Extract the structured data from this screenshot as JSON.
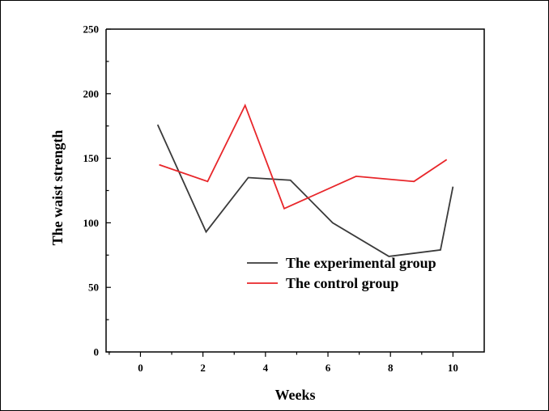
{
  "chart_data": {
    "type": "line",
    "xlabel": "Weeks",
    "ylabel": "The waist strength",
    "xlim": [
      -1.1,
      11
    ],
    "ylim": [
      0,
      250
    ],
    "x_ticks": [
      0,
      2,
      4,
      6,
      8,
      10
    ],
    "y_ticks": [
      0,
      50,
      100,
      150,
      200,
      250
    ],
    "grid": false,
    "legend_position": "bottom-right",
    "series": [
      {
        "name": "The experimental group",
        "color": "#3a3a3a",
        "x": [
          0.55,
          2.1,
          3.45,
          4.8,
          6.15,
          7.95,
          9.6,
          10.0
        ],
        "values": [
          176,
          93,
          135,
          133,
          100,
          74,
          79,
          128
        ]
      },
      {
        "name": "The control group",
        "color": "#e8262a",
        "x": [
          0.6,
          2.15,
          3.35,
          4.6,
          6.9,
          8.75,
          9.8
        ],
        "values": [
          145,
          132,
          191,
          111,
          136,
          132,
          149
        ]
      }
    ]
  }
}
